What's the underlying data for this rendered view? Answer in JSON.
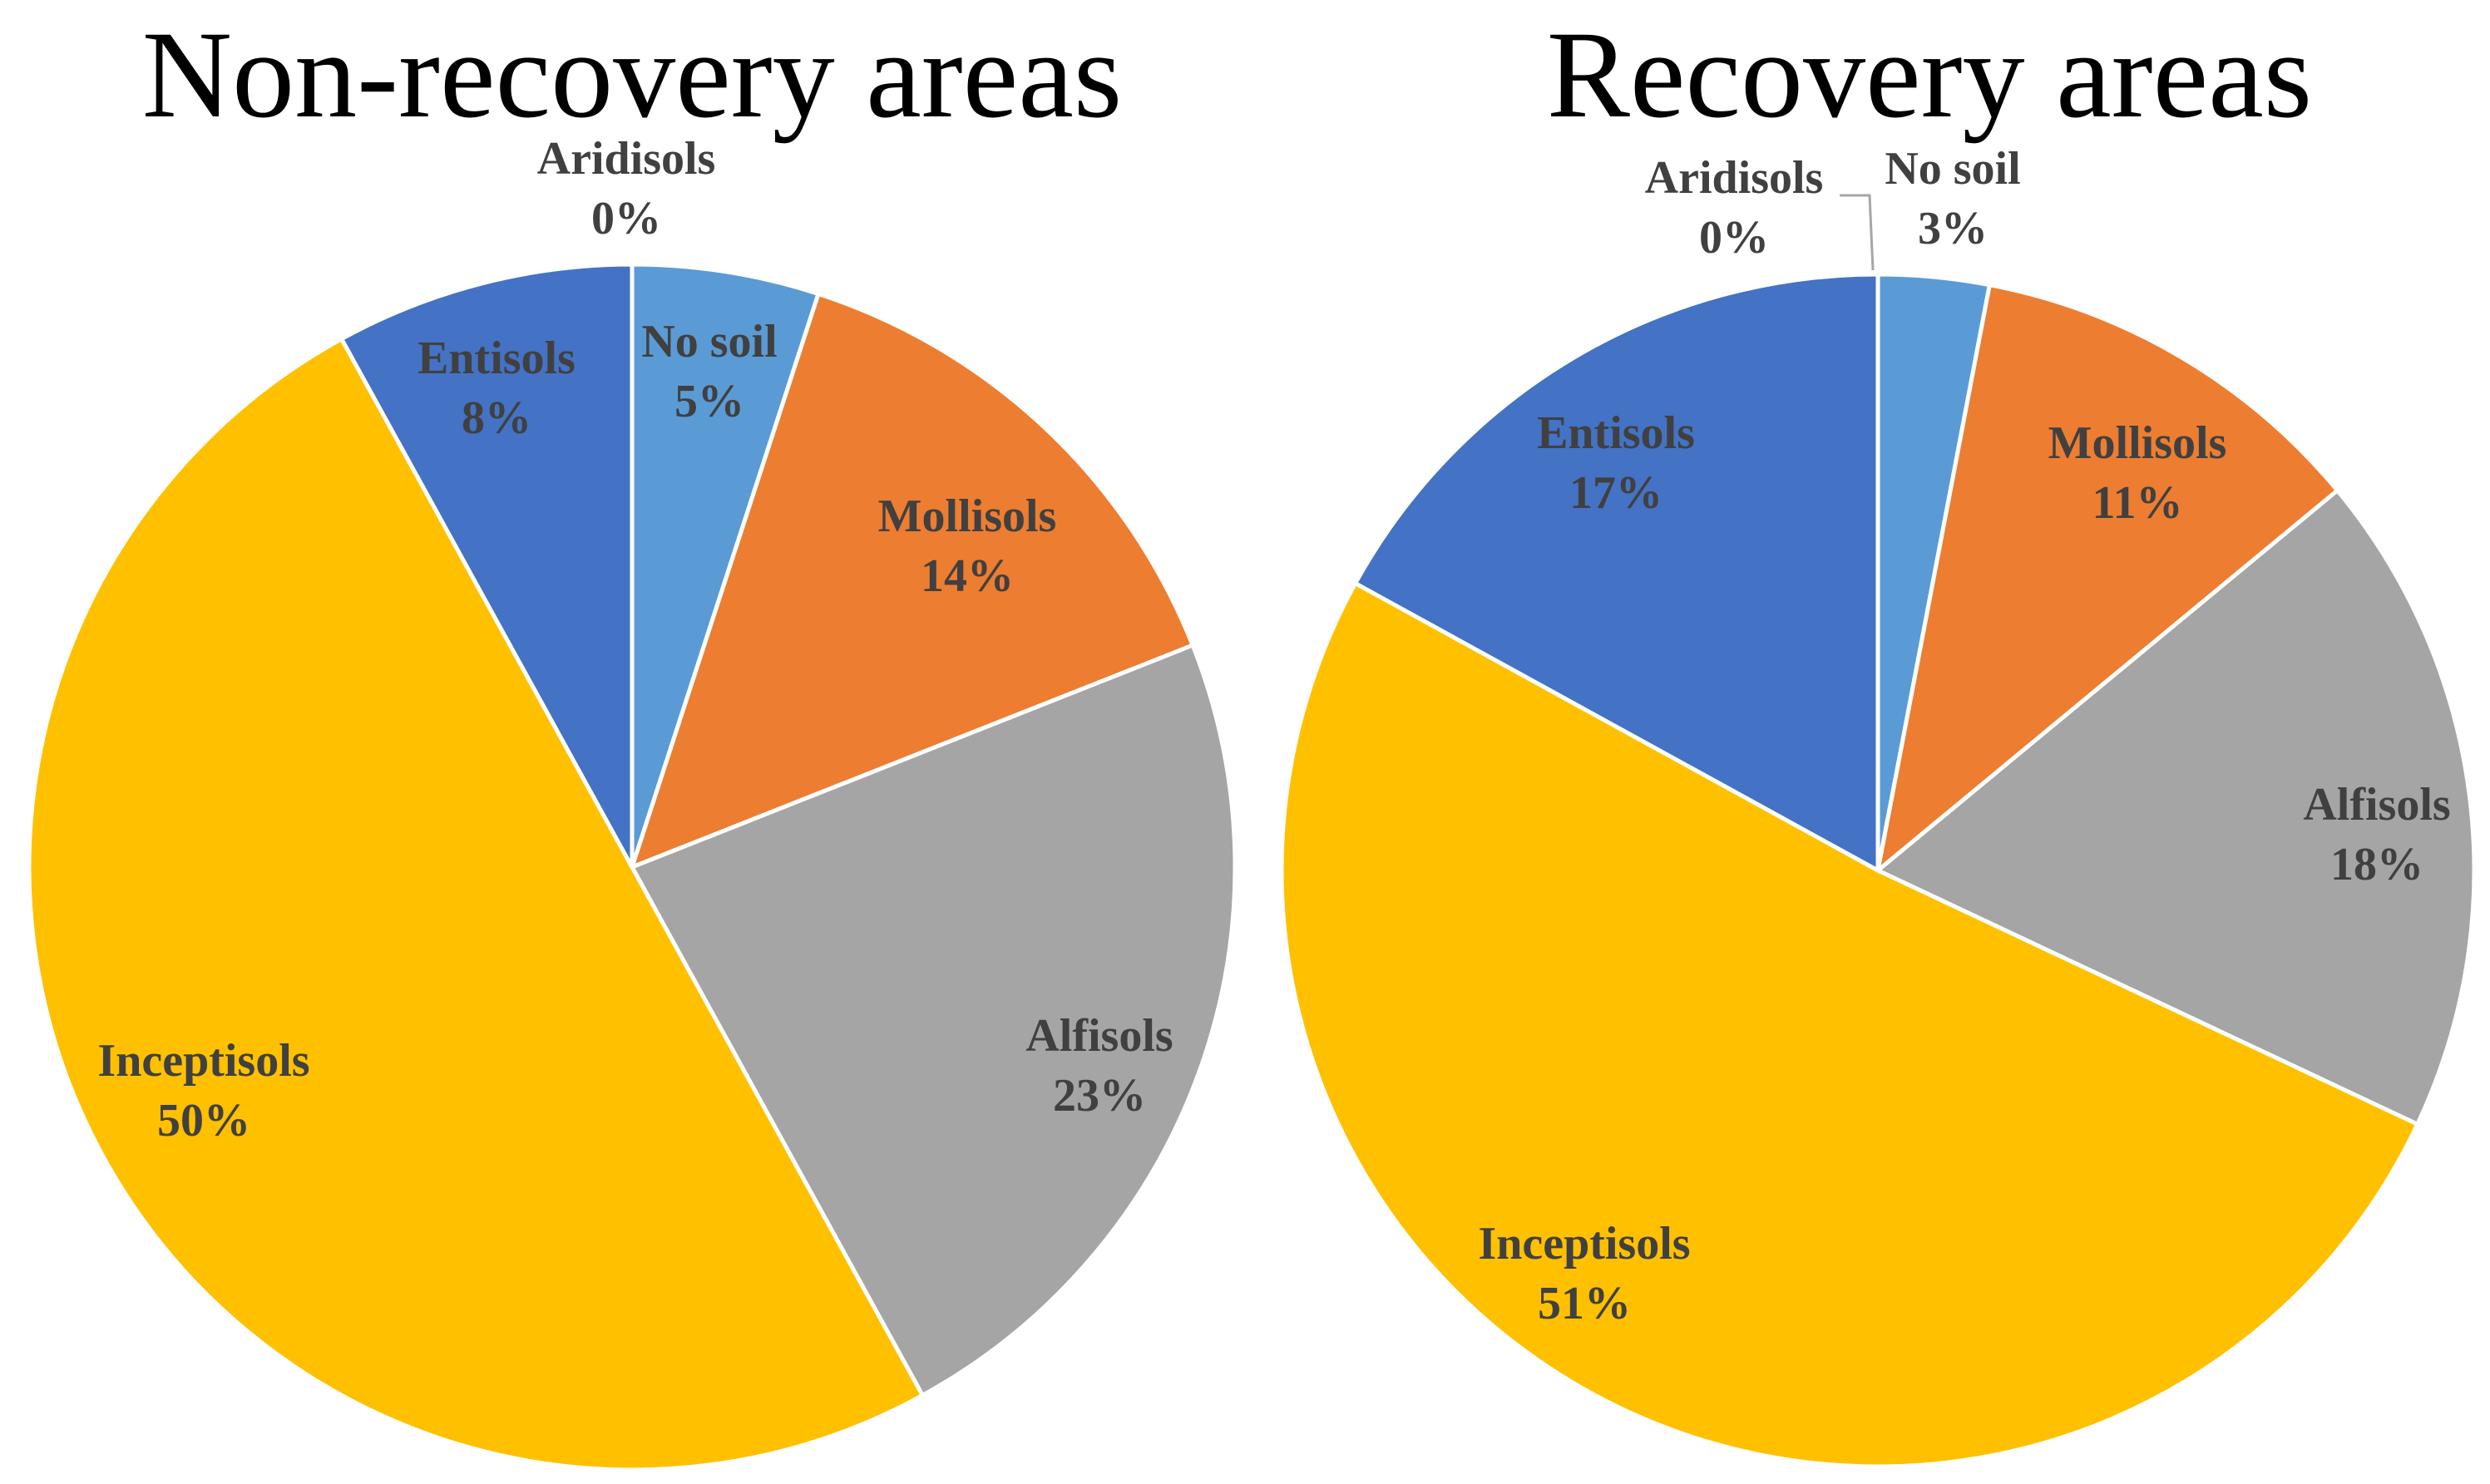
{
  "chart_data": [
    {
      "type": "pie",
      "title": "Non-recovery areas",
      "start_angle_deg": 0,
      "direction": "clockwise",
      "slices": [
        {
          "label": "No soil",
          "value": 5,
          "percent_label": "5%",
          "color": "#5B9BD5"
        },
        {
          "label": "Mollisols",
          "value": 14,
          "percent_label": "14%",
          "color": "#ED7D31"
        },
        {
          "label": "Alfisols",
          "value": 23,
          "percent_label": "23%",
          "color": "#A5A5A5"
        },
        {
          "label": "Inceptisols",
          "value": 50,
          "percent_label": "50%",
          "color": "#FFC000"
        },
        {
          "label": "Entisols",
          "value": 8,
          "percent_label": "8%",
          "color": "#4472C4"
        },
        {
          "label": "Aridisols",
          "value": 0,
          "percent_label": "0%",
          "color": "#70AD47"
        }
      ]
    },
    {
      "type": "pie",
      "title": "Recovery areas",
      "start_angle_deg": 0,
      "direction": "clockwise",
      "slices": [
        {
          "label": "No soil",
          "value": 3,
          "percent_label": "3%",
          "color": "#5B9BD5"
        },
        {
          "label": "Mollisols",
          "value": 11,
          "percent_label": "11%",
          "color": "#ED7D31"
        },
        {
          "label": "Alfisols",
          "value": 18,
          "percent_label": "18%",
          "color": "#A5A5A5"
        },
        {
          "label": "Inceptisols",
          "value": 51,
          "percent_label": "51%",
          "color": "#FFC000"
        },
        {
          "label": "Entisols",
          "value": 17,
          "percent_label": "17%",
          "color": "#4472C4"
        },
        {
          "label": "Aridisols",
          "value": 0,
          "percent_label": "0%",
          "color": "#70AD47"
        }
      ]
    }
  ]
}
